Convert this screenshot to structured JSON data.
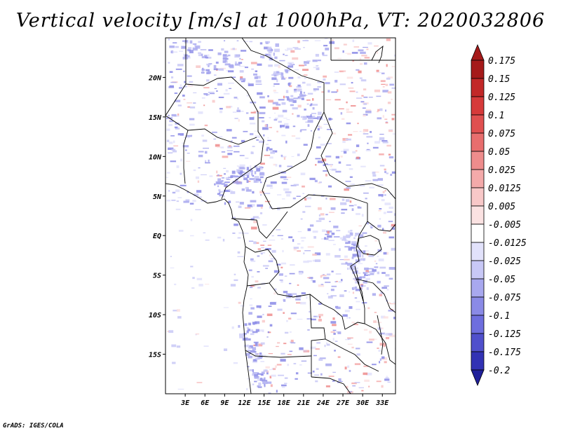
{
  "title": "Vertical velocity [m/s] at 1000hPa, VT: 2020032806",
  "credit": "GrADS: IGES/COLA",
  "map": {
    "lon_range": [
      0,
      35
    ],
    "lat_range": [
      -20,
      25
    ],
    "lat_ticks": [
      {
        "value": 20,
        "label": "20N"
      },
      {
        "value": 15,
        "label": "15N"
      },
      {
        "value": 10,
        "label": "10N"
      },
      {
        "value": 5,
        "label": "5N"
      },
      {
        "value": 0,
        "label": "EQ"
      },
      {
        "value": -5,
        "label": "5S"
      },
      {
        "value": -10,
        "label": "10S"
      },
      {
        "value": -15,
        "label": "15S"
      }
    ],
    "lon_ticks": [
      {
        "value": 3,
        "label": "3E"
      },
      {
        "value": 6,
        "label": "6E"
      },
      {
        "value": 9,
        "label": "9E"
      },
      {
        "value": 12,
        "label": "12E"
      },
      {
        "value": 15,
        "label": "15E"
      },
      {
        "value": 18,
        "label": "18E"
      },
      {
        "value": 21,
        "label": "21E"
      },
      {
        "value": 24,
        "label": "24E"
      },
      {
        "value": 27,
        "label": "27E"
      },
      {
        "value": 30,
        "label": "30E"
      },
      {
        "value": 33,
        "label": "33E"
      }
    ]
  },
  "colorbar": {
    "levels": [
      {
        "label": "0.175",
        "color": "#a51a1a"
      },
      {
        "label": "0.15",
        "color": "#c22828"
      },
      {
        "label": "0.125",
        "color": "#d63a3a"
      },
      {
        "label": "0.1",
        "color": "#e05050"
      },
      {
        "label": "0.075",
        "color": "#e86e6e"
      },
      {
        "label": "0.05",
        "color": "#ee8c8c"
      },
      {
        "label": "0.025",
        "color": "#f4aaaa"
      },
      {
        "label": "0.0125",
        "color": "#f8c8c8"
      },
      {
        "label": "0.005",
        "color": "#fbe2e2"
      },
      {
        "label": "-0.005",
        "color": "#ffffff"
      },
      {
        "label": "-0.0125",
        "color": "#e2e2fb"
      },
      {
        "label": "-0.025",
        "color": "#c8c8f6"
      },
      {
        "label": "-0.05",
        "color": "#a8a8ef"
      },
      {
        "label": "-0.075",
        "color": "#8a8ae6"
      },
      {
        "label": "-0.1",
        "color": "#6e6ede"
      },
      {
        "label": "-0.125",
        "color": "#5050cc"
      },
      {
        "label": "-0.175",
        "color": "#3232b4"
      },
      {
        "label": "-0.2",
        "color": "#20209a"
      }
    ],
    "top_arrow_color": "#a51a1a",
    "bottom_arrow_color": "#20209a"
  }
}
